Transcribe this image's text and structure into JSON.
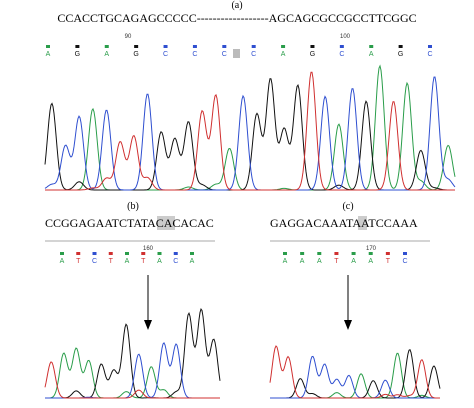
{
  "panel_a": {
    "label": "(a)",
    "sequence": "CCACCTGCAGAGCCCCC------------------AGCAGCGCCGCCTTCGGC",
    "positions": [
      "90",
      "100"
    ],
    "base_calls": [
      "A",
      "G",
      "A",
      "G",
      "C",
      "C",
      "C",
      "C",
      "A",
      "G",
      "C",
      "A",
      "G",
      "C"
    ]
  },
  "panel_b": {
    "label": "(b)",
    "sequence": "CCGGAGAATCTATACACACAC",
    "position": "160",
    "base_calls": [
      "A",
      "T",
      "C",
      "T",
      "A",
      "T",
      "A",
      "C",
      "A"
    ]
  },
  "panel_c": {
    "label": "(c)",
    "sequence": "GAGGACAAATAATCCAAA",
    "position": "170",
    "base_calls": [
      "A",
      "A",
      "A",
      "T",
      "A",
      "A",
      "T",
      "C"
    ]
  }
}
